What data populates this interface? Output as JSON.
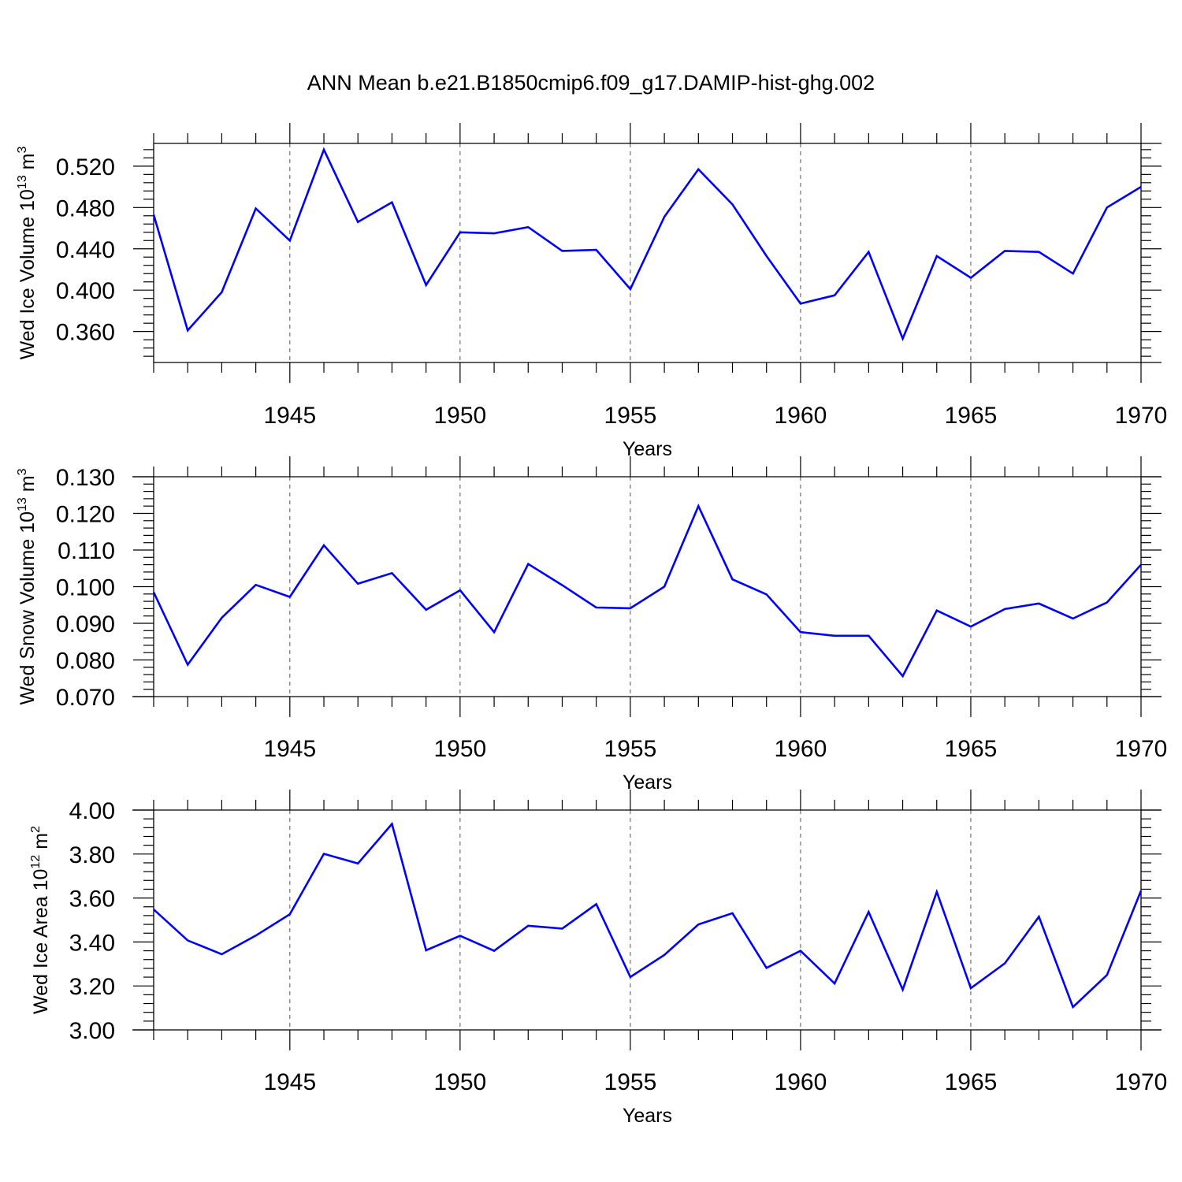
{
  "title": "ANN Mean b.e21.B1850cmip6.f09_g17.DAMIP-hist-ghg.002",
  "colors": {
    "series": "#0000ff",
    "axes": "#000000",
    "grid": "#555555"
  },
  "chart_data": [
    {
      "type": "line",
      "ylabel": "Wed Ice Volume",
      "ylabel_base": "10",
      "ylabel_exp": "13",
      "ylabel_unit": "m",
      "ylabel_unit_exp": "3",
      "xlabel": "Years",
      "xlim": [
        1941,
        1970
      ],
      "ylim": [
        0.33,
        0.542
      ],
      "xticks": [
        1945,
        1950,
        1955,
        1960,
        1965,
        1970
      ],
      "yticks": [
        "0.360",
        "0.400",
        "0.440",
        "0.480",
        "0.520"
      ],
      "grid": "vertical dashed at major x ticks",
      "x": [
        1941,
        1942,
        1943,
        1944,
        1945,
        1946,
        1947,
        1948,
        1949,
        1950,
        1951,
        1952,
        1953,
        1954,
        1955,
        1956,
        1957,
        1958,
        1959,
        1960,
        1961,
        1962,
        1963,
        1964,
        1965,
        1966,
        1967,
        1968,
        1969,
        1970
      ],
      "values": [
        0.473,
        0.361,
        0.398,
        0.479,
        0.448,
        0.536,
        0.466,
        0.485,
        0.405,
        0.456,
        0.455,
        0.461,
        0.438,
        0.439,
        0.401,
        0.471,
        0.517,
        0.483,
        0.433,
        0.387,
        0.395,
        0.437,
        0.353,
        0.433,
        0.412,
        0.438,
        0.437,
        0.416,
        0.48,
        0.5
      ]
    },
    {
      "type": "line",
      "ylabel": "Wed Snow Volume",
      "ylabel_base": "10",
      "ylabel_exp": "13",
      "ylabel_unit": "m",
      "ylabel_unit_exp": "3",
      "xlabel": "Years",
      "xlim": [
        1941,
        1970
      ],
      "ylim": [
        0.07,
        0.13
      ],
      "xticks": [
        1945,
        1950,
        1955,
        1960,
        1965,
        1970
      ],
      "yticks": [
        "0.070",
        "0.080",
        "0.090",
        "0.100",
        "0.110",
        "0.120",
        "0.130"
      ],
      "grid": "vertical dashed at major x ticks",
      "x": [
        1941,
        1942,
        1943,
        1944,
        1945,
        1946,
        1947,
        1948,
        1949,
        1950,
        1951,
        1952,
        1953,
        1954,
        1955,
        1956,
        1957,
        1958,
        1959,
        1960,
        1961,
        1962,
        1963,
        1964,
        1965,
        1966,
        1967,
        1968,
        1969,
        1970
      ],
      "values": [
        0.0985,
        0.0787,
        0.0915,
        0.1005,
        0.0972,
        0.1113,
        0.1008,
        0.1037,
        0.0937,
        0.099,
        0.0876,
        0.1062,
        0.1004,
        0.0943,
        0.0941,
        0.1,
        0.122,
        0.102,
        0.0979,
        0.0876,
        0.0866,
        0.0866,
        0.0756,
        0.0935,
        0.0891,
        0.0939,
        0.0954,
        0.0913,
        0.0957,
        0.106
      ]
    },
    {
      "type": "line",
      "ylabel": "Wed Ice Area",
      "ylabel_base": "10",
      "ylabel_exp": "12",
      "ylabel_unit": "m",
      "ylabel_unit_exp": "2",
      "xlabel": "Years",
      "xlim": [
        1941,
        1970
      ],
      "ylim": [
        3.0,
        4.0
      ],
      "xticks": [
        1945,
        1950,
        1955,
        1960,
        1965,
        1970
      ],
      "yticks": [
        "3.00",
        "3.20",
        "3.40",
        "3.60",
        "3.80",
        "4.00"
      ],
      "grid": "vertical dashed at major x ticks",
      "x": [
        1941,
        1942,
        1943,
        1944,
        1945,
        1946,
        1947,
        1948,
        1949,
        1950,
        1951,
        1952,
        1953,
        1954,
        1955,
        1956,
        1957,
        1958,
        1959,
        1960,
        1961,
        1962,
        1963,
        1964,
        1965,
        1966,
        1967,
        1968,
        1969,
        1970
      ],
      "values": [
        3.548,
        3.407,
        3.344,
        3.429,
        3.526,
        3.801,
        3.757,
        3.937,
        3.362,
        3.428,
        3.36,
        3.474,
        3.461,
        3.572,
        3.241,
        3.341,
        3.48,
        3.531,
        3.282,
        3.36,
        3.211,
        3.537,
        3.183,
        3.628,
        3.19,
        3.303,
        3.515,
        3.104,
        3.25,
        3.633
      ]
    }
  ]
}
